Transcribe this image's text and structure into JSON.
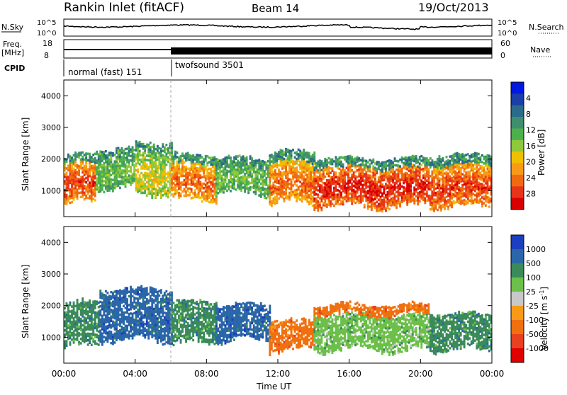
{
  "header": {
    "title": "Rankin Inlet (fitACF)",
    "beam": "Beam 14",
    "date": "19/Oct/2013"
  },
  "status_panels": {
    "nsky_label": "N.Sky",
    "nsearch_label": "N.Search",
    "noise_ticks_left": [
      "10^5",
      "10^0"
    ],
    "noise_ticks_right": [
      "10^5",
      "10^0"
    ],
    "freq_label_line1": "Freq.",
    "freq_label_line2": "[MHz]",
    "freq_ticks": [
      "18",
      "8"
    ],
    "nave_label": "Nave",
    "nave_ticks": [
      "60",
      "0"
    ],
    "cpid_label": "CPID",
    "cpid_modes": [
      {
        "name": "normal (fast) 151",
        "start_hour": 0.0,
        "end_hour": 6.0
      },
      {
        "name": "twofsound 3501",
        "start_hour": 6.0,
        "end_hour": 24.0
      }
    ]
  },
  "chart_data": [
    {
      "type": "heatmap",
      "name": "power",
      "title": "",
      "ylabel": "Slant Range [km]",
      "xlabel": "",
      "x_range_hours": [
        0,
        24
      ],
      "ylim": [
        180,
        4500
      ],
      "yticks": [
        "1000",
        "2000",
        "3000",
        "4000"
      ],
      "colorbar": {
        "label": "Power [dB]",
        "ticks": [
          "4",
          "8",
          "12",
          "16",
          "20",
          "24",
          "28"
        ],
        "range": [
          0,
          30
        ],
        "colors": [
          "#0018e0",
          "#1a3fa8",
          "#2a6a8a",
          "#3f8f6e",
          "#4cb04c",
          "#8ec83c",
          "#f0c000",
          "#f89a18",
          "#f06a10",
          "#e83418",
          "#d80000"
        ]
      },
      "echo_bands": [
        {
          "start_hour": 0.0,
          "end_hour": 1.8,
          "low_km": 600,
          "high_km": 2100,
          "level": 26
        },
        {
          "start_hour": 1.8,
          "end_hour": 4.0,
          "low_km": 1100,
          "high_km": 2300,
          "level": 14
        },
        {
          "start_hour": 4.0,
          "end_hour": 6.0,
          "low_km": 900,
          "high_km": 2500,
          "level": 18
        },
        {
          "start_hour": 6.0,
          "end_hour": 8.5,
          "low_km": 700,
          "high_km": 2100,
          "level": 24
        },
        {
          "start_hour": 8.5,
          "end_hour": 11.5,
          "low_km": 900,
          "high_km": 2000,
          "level": 14
        },
        {
          "start_hour": 11.5,
          "end_hour": 14.0,
          "low_km": 600,
          "high_km": 2200,
          "level": 24
        },
        {
          "start_hour": 14.0,
          "end_hour": 20.5,
          "low_km": 500,
          "high_km": 2000,
          "level": 28
        },
        {
          "start_hour": 20.5,
          "end_hour": 24.0,
          "low_km": 500,
          "high_km": 2100,
          "level": 26
        }
      ]
    },
    {
      "type": "heatmap",
      "name": "velocity",
      "title": "",
      "ylabel": "Slant Range [km]",
      "xlabel": "Time UT",
      "x_range_hours": [
        0,
        24
      ],
      "xticks": [
        "00:00",
        "04:00",
        "08:00",
        "12:00",
        "16:00",
        "20:00",
        "00:00"
      ],
      "ylim": [
        180,
        4500
      ],
      "yticks": [
        "1000",
        "2000",
        "3000",
        "4000"
      ],
      "colorbar": {
        "label": "Velocity [m s^-1]",
        "ticks": [
          "1000",
          "500",
          "100",
          "25",
          "-25",
          "-100",
          "-500",
          "-1000"
        ],
        "colors": [
          "#1a3fbf",
          "#2a66a8",
          "#3a8a5a",
          "#6cc04a",
          "#c8c8c8",
          "#f89a18",
          "#f07010",
          "#e84020",
          "#e00000"
        ]
      },
      "echo_bands": [
        {
          "start_hour": 0.0,
          "end_hour": 2.0,
          "low_km": 700,
          "high_km": 2100,
          "velocity_class": "100"
        },
        {
          "start_hour": 2.0,
          "end_hour": 6.0,
          "low_km": 900,
          "high_km": 2500,
          "velocity_class": "500"
        },
        {
          "start_hour": 6.0,
          "end_hour": 8.5,
          "low_km": 800,
          "high_km": 2100,
          "velocity_class": "100"
        },
        {
          "start_hour": 8.5,
          "end_hour": 11.5,
          "low_km": 900,
          "high_km": 2000,
          "velocity_class": "500"
        },
        {
          "start_hour": 11.5,
          "end_hour": 14.0,
          "low_km": 600,
          "high_km": 1500,
          "velocity_class": "-500"
        },
        {
          "start_hour": 14.0,
          "end_hour": 20.5,
          "low_km": 600,
          "high_km": 1700,
          "velocity_class": "25"
        },
        {
          "start_hour": 14.0,
          "end_hour": 20.5,
          "low_km": 1700,
          "high_km": 2000,
          "velocity_class": "-500"
        },
        {
          "start_hour": 20.5,
          "end_hour": 24.0,
          "low_km": 600,
          "high_km": 1700,
          "velocity_class": "100"
        }
      ]
    }
  ]
}
